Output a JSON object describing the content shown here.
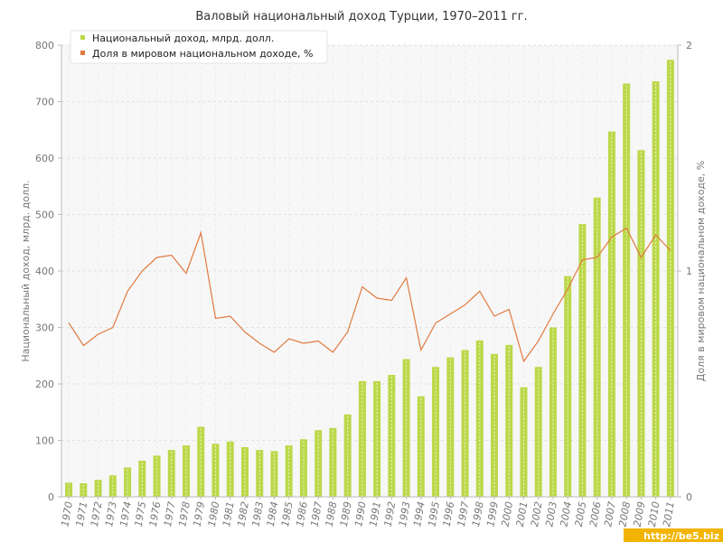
{
  "chart_data": {
    "type": "bar+line",
    "title": "Валовый национальный доход Турции, 1970–2011 гг.",
    "ylabel_left": "Национальный доход, млрд. долл.",
    "ylabel_right": "Доля в мировом национальном доходе, %",
    "ylim_left": [
      0,
      800
    ],
    "yticks_left": [
      "0",
      "100",
      "200",
      "300",
      "400",
      "500",
      "600",
      "700",
      "800"
    ],
    "ylim_right": [
      0,
      2
    ],
    "yticks_right": [
      "0",
      "1",
      "2"
    ],
    "grid": true,
    "legend_position": "top-left",
    "categories": [
      "1970",
      "1971",
      "1972",
      "1973",
      "1974",
      "1975",
      "1976",
      "1977",
      "1978",
      "1979",
      "1980",
      "1981",
      "1982",
      "1983",
      "1984",
      "1985",
      "1986",
      "1987",
      "1988",
      "1989",
      "1990",
      "1991",
      "1992",
      "1993",
      "1994",
      "1995",
      "1996",
      "1997",
      "1998",
      "1999",
      "2000",
      "2001",
      "2002",
      "2003",
      "2004",
      "2005",
      "2006",
      "2007",
      "2008",
      "2009",
      "2010",
      "2011"
    ],
    "series": [
      {
        "name": "Национальный доход, млрд. долл.",
        "type": "bar",
        "axis": "left",
        "color": "#bcd84a",
        "values": [
          25,
          24,
          30,
          38,
          52,
          64,
          73,
          83,
          91,
          124,
          94,
          98,
          88,
          83,
          81,
          91,
          102,
          118,
          122,
          146,
          205,
          205,
          216,
          244,
          178,
          230,
          247,
          260,
          277,
          253,
          269,
          194,
          230,
          300,
          391,
          483,
          530,
          647,
          732,
          614,
          736,
          774
        ]
      },
      {
        "name": "Доля в мировом национальном доходе, %",
        "type": "line",
        "axis": "right",
        "color": "#e07a40",
        "values": [
          0.77,
          0.67,
          0.72,
          0.75,
          0.91,
          1.0,
          1.06,
          1.07,
          0.99,
          1.17,
          0.79,
          0.8,
          0.73,
          0.68,
          0.64,
          0.7,
          0.68,
          0.69,
          0.64,
          0.73,
          0.93,
          0.88,
          0.87,
          0.97,
          0.65,
          0.77,
          0.81,
          0.85,
          0.91,
          0.8,
          0.83,
          0.6,
          0.69,
          0.81,
          0.92,
          1.05,
          1.06,
          1.15,
          1.19,
          1.06,
          1.16,
          1.09
        ]
      }
    ]
  },
  "watermark": "http://be5.biz"
}
